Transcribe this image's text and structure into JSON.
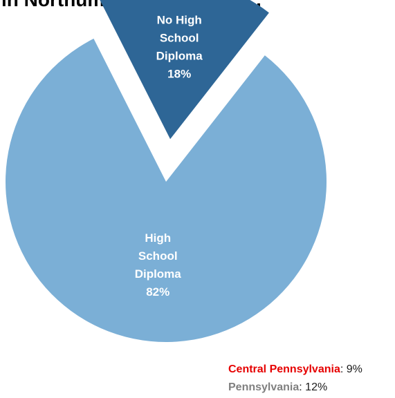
{
  "chart_data": {
    "type": "pie",
    "title": "in Northumberland County...",
    "slices": [
      {
        "label": "High School Diploma",
        "value": 82,
        "display": "82%",
        "color": "#7bafd6",
        "exploded": false
      },
      {
        "label": "No High School Diploma",
        "value": 18,
        "display": "18%",
        "color": "#2e6696",
        "exploded": true
      }
    ],
    "legend": "none"
  },
  "comparisons": [
    {
      "name": "Central Pennsylvania",
      "value": "9%",
      "color": "#e60000"
    },
    {
      "name": "Pennsylvania",
      "value": "12%",
      "color": "#808080"
    }
  ]
}
